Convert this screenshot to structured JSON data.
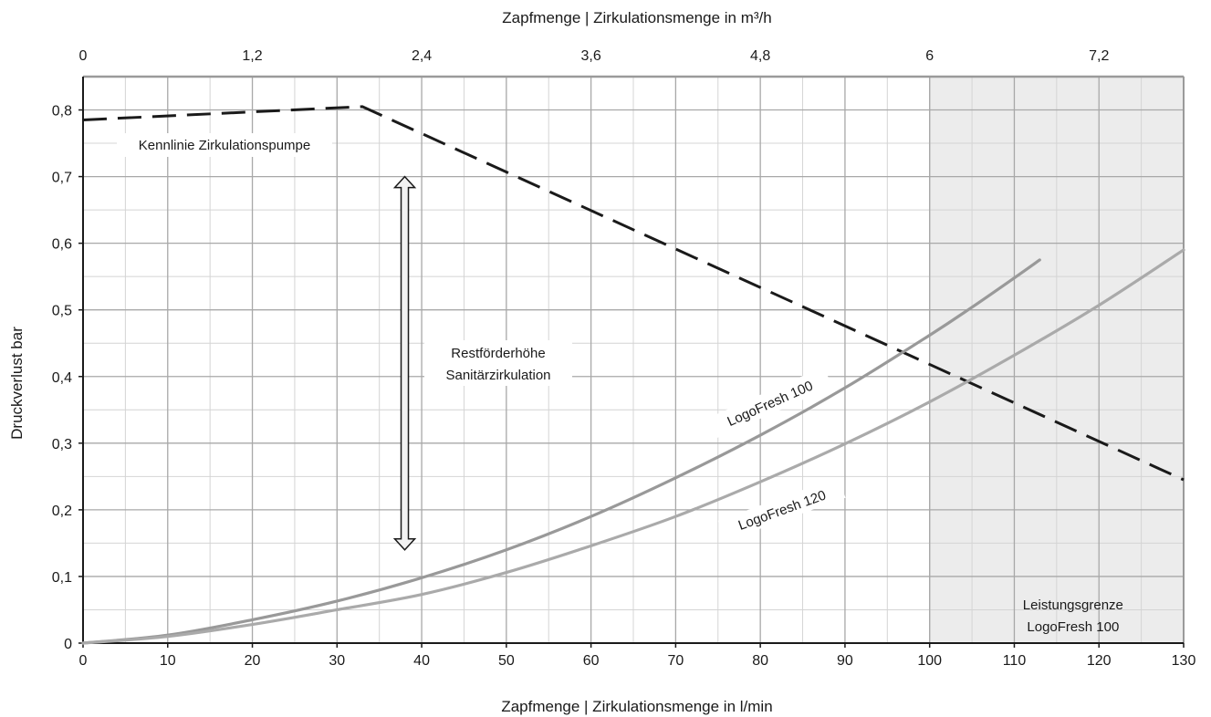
{
  "chart_data": {
    "type": "line",
    "title": "",
    "xlabel": "Zapfmenge | Zirkulationsmenge in l/min",
    "x2label": "Zapfmenge | Zirkulationsmenge  in m³/h",
    "ylabel": "Druckverlust bar",
    "xlim": [
      0,
      130
    ],
    "x2lim": [
      0,
      7.8
    ],
    "ylim": [
      0,
      0.85
    ],
    "x_ticks": [
      0,
      10,
      20,
      30,
      40,
      50,
      60,
      70,
      80,
      90,
      100,
      110,
      120,
      130
    ],
    "x_tick_labels": [
      "0",
      "10",
      "20",
      "30",
      "40",
      "50",
      "60",
      "70",
      "80",
      "90",
      "100",
      "110",
      "120",
      "130"
    ],
    "x2_ticks": [
      0,
      1.2,
      2.4,
      3.6,
      4.8,
      6,
      7.2
    ],
    "x2_tick_labels": [
      "0",
      "1,2",
      "2,4",
      "3,6",
      "4,8",
      "6",
      "7,2"
    ],
    "y_ticks": [
      0,
      0.1,
      0.2,
      0.3,
      0.4,
      0.5,
      0.6,
      0.7,
      0.8
    ],
    "y_tick_labels": [
      "0",
      "0,1",
      "0,2",
      "0,3",
      "0,4",
      "0,5",
      "0,6",
      "0,7",
      "0,8"
    ],
    "grid": true,
    "series": [
      {
        "name": "Kennlinie Zirkulationspumpe",
        "style": "dashed",
        "color": "#1a1a1a",
        "x": [
          0,
          33,
          130
        ],
        "y": [
          0.785,
          0.805,
          0.245
        ]
      },
      {
        "name": "LogoFresh 100",
        "style": "solid",
        "color": "#999999",
        "x": [
          0,
          10,
          20,
          30,
          40,
          50,
          60,
          70,
          80,
          90,
          100,
          105,
          110,
          113
        ],
        "y": [
          0,
          0.012,
          0.035,
          0.063,
          0.098,
          0.14,
          0.19,
          0.248,
          0.312,
          0.383,
          0.462,
          0.504,
          0.548,
          0.575
        ]
      },
      {
        "name": "LogoFresh 120",
        "style": "solid",
        "color": "#aaaaaa",
        "x": [
          0,
          10,
          20,
          30,
          40,
          50,
          60,
          70,
          80,
          90,
          100,
          110,
          120,
          130
        ],
        "y": [
          0,
          0.01,
          0.028,
          0.05,
          0.073,
          0.106,
          0.146,
          0.19,
          0.242,
          0.299,
          0.362,
          0.432,
          0.507,
          0.59
        ]
      }
    ],
    "shaded_region": {
      "x_from": 100,
      "x_to": 130,
      "label_lines": [
        "Leistungsgrenze",
        "LogoFresh 100"
      ]
    },
    "annotations": {
      "pump_label": "Kennlinie Zirkulationspumpe",
      "rest_label_lines": [
        "Restförderhöhe",
        "Sanitärzirkulation"
      ],
      "lf100_label": "LogoFresh 100",
      "lf120_label": "LogoFresh 120",
      "arrow_x": 38,
      "arrow_from": 0.14,
      "arrow_to": 0.7
    }
  }
}
